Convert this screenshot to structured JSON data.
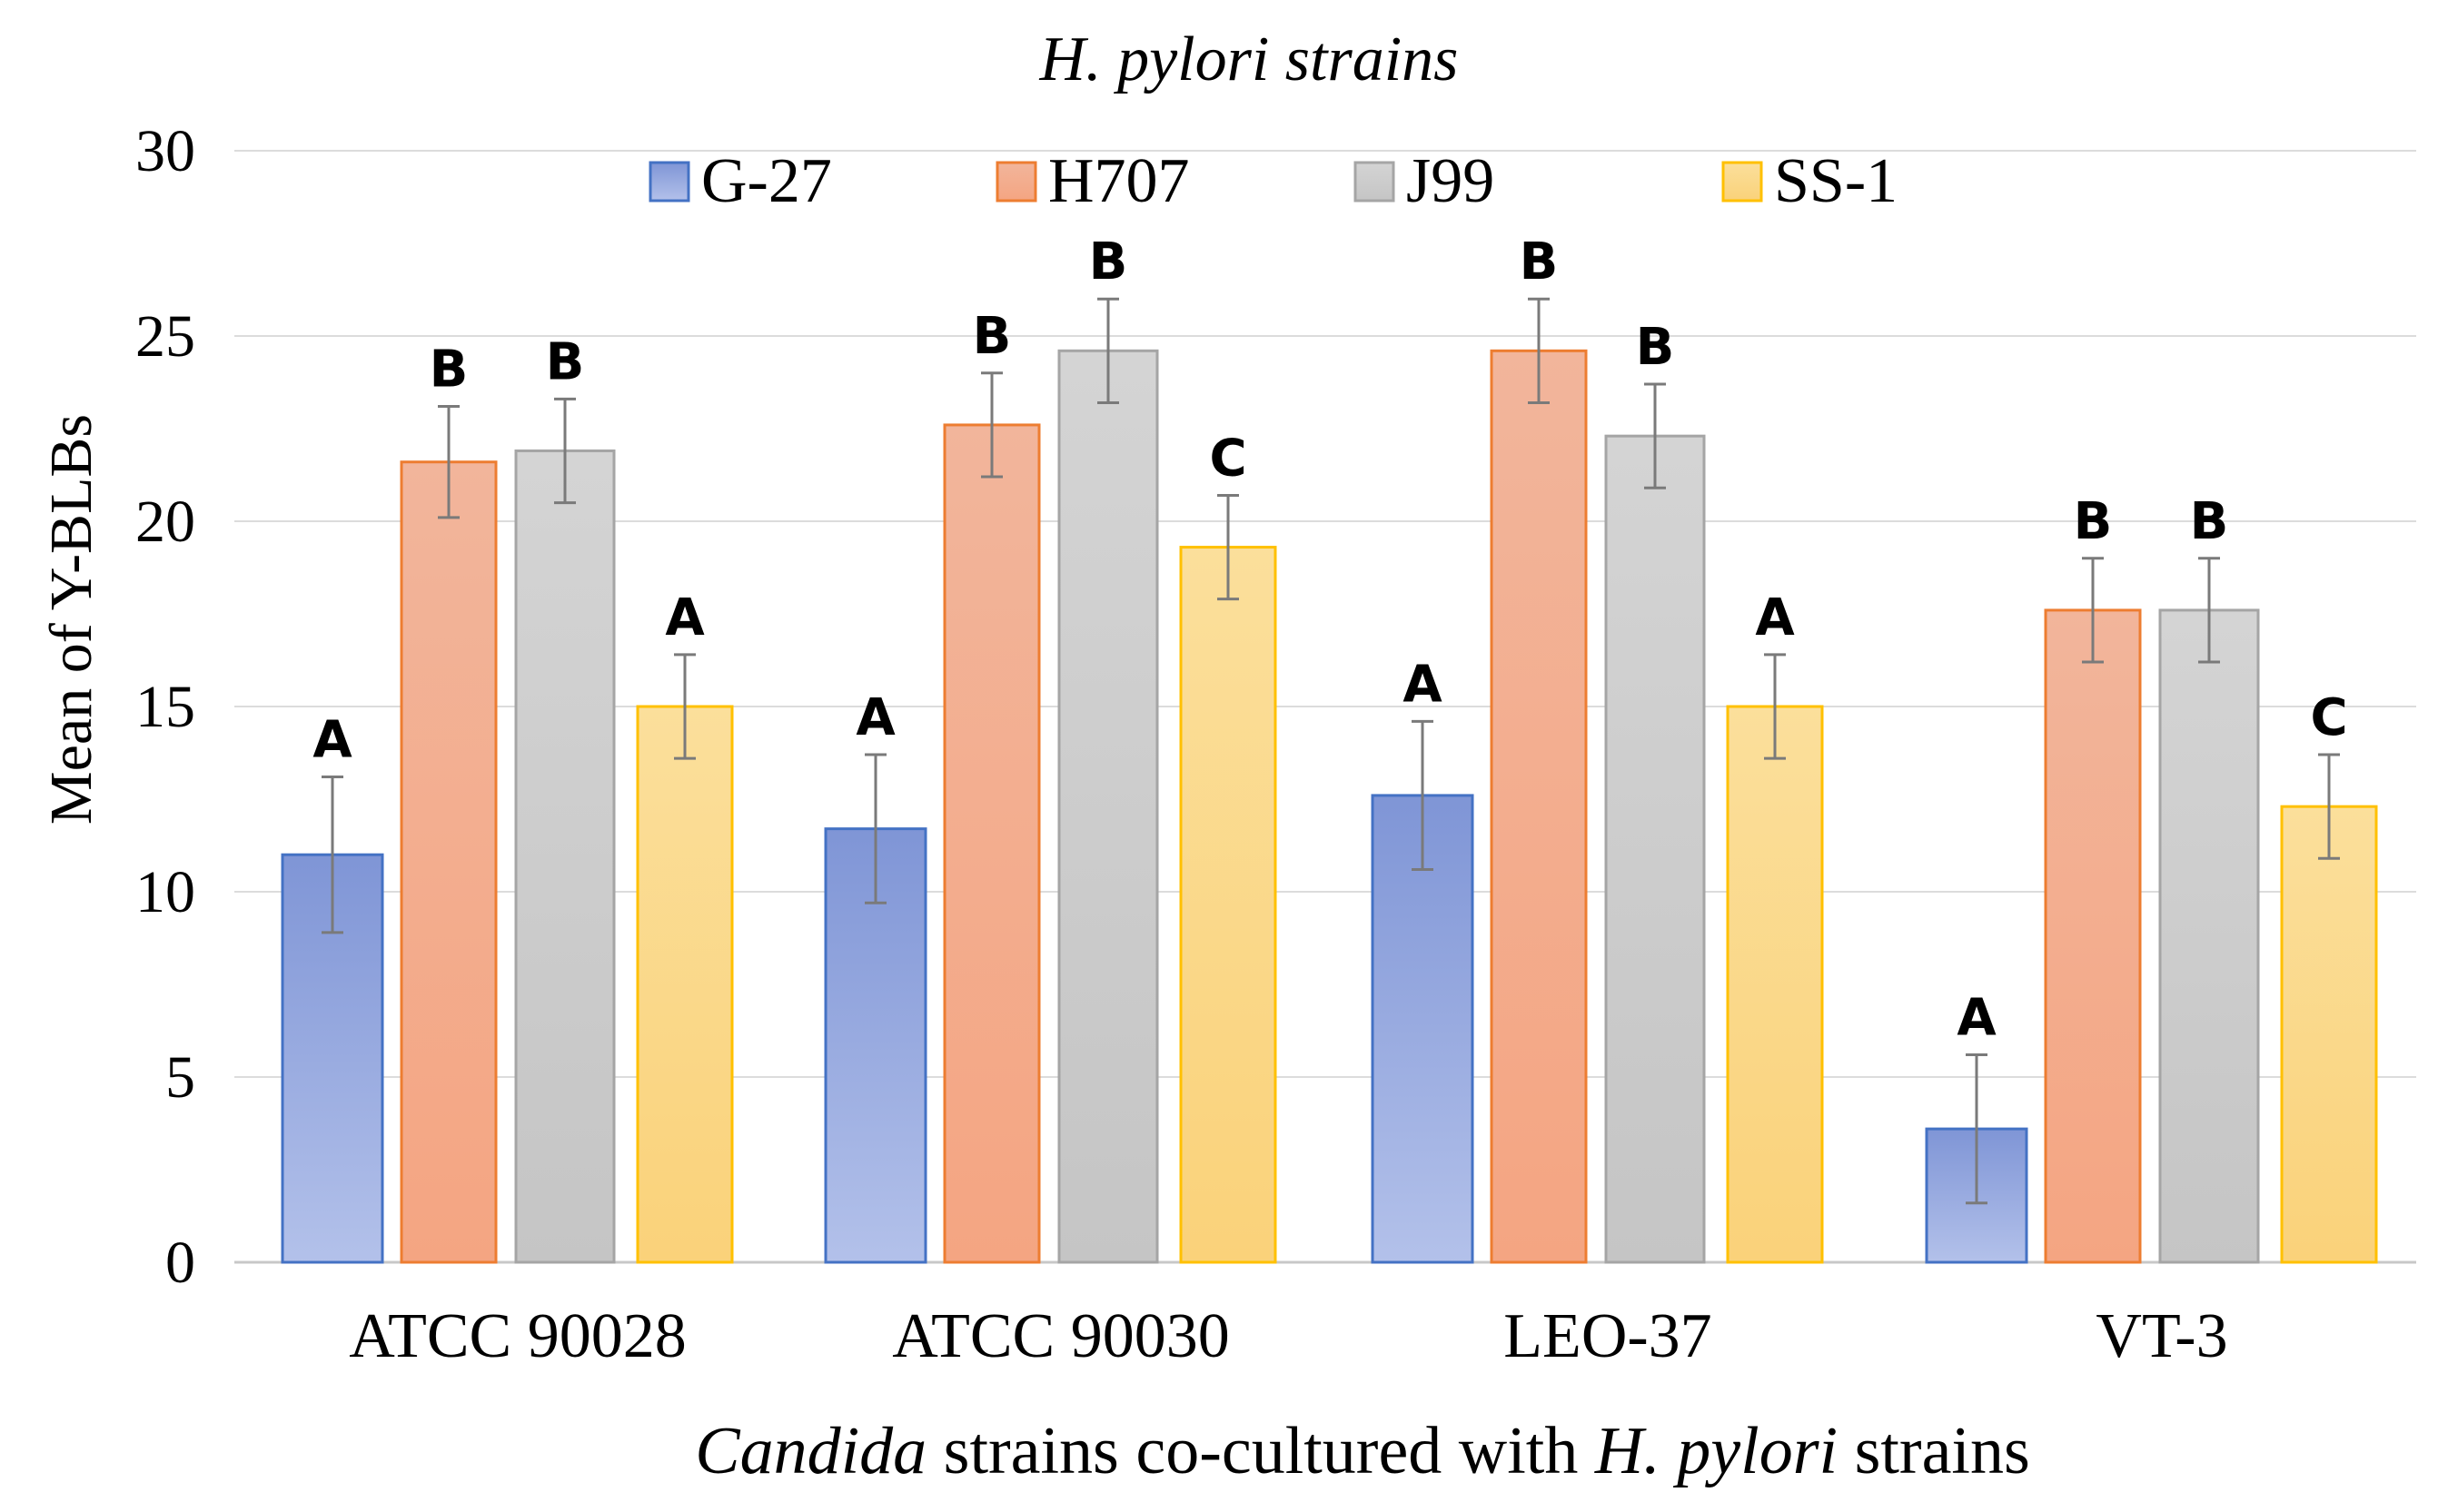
{
  "chart_data": {
    "type": "bar",
    "title": "H. pylori strains",
    "xlabel": {
      "parts": [
        {
          "text": "Candida",
          "italic": true
        },
        {
          "text": " strains co-cultured with ",
          "italic": false
        },
        {
          "text": "H. pylori",
          "italic": true
        },
        {
          "text": " strains",
          "italic": false
        }
      ]
    },
    "ylabel": "Mean of Y-BLBs",
    "ylim": [
      0,
      30
    ],
    "yticks": [
      0,
      5,
      10,
      15,
      20,
      25,
      30
    ],
    "grid": true,
    "legend_position": "top",
    "categories": [
      "ATCC 90028",
      "ATCC 90030",
      "LEO-37",
      "VT-3"
    ],
    "series": [
      {
        "name": "G-27",
        "color_top": "#7F95D6",
        "color_bottom": "#B3C1EA",
        "edge": "#4472C4",
        "values": [
          11.0,
          11.7,
          12.6,
          3.6
        ],
        "errors": [
          2.1,
          2.0,
          2.0,
          2.0
        ],
        "letters": [
          "A",
          "A",
          "A",
          "A"
        ]
      },
      {
        "name": "H707",
        "color_top": "#F2B59B",
        "color_bottom": "#F4A582",
        "edge": "#ED7D31",
        "values": [
          21.6,
          22.6,
          24.6,
          17.6
        ],
        "errors": [
          1.5,
          1.4,
          1.4,
          1.4
        ],
        "letters": [
          "B",
          "B",
          "B",
          "B"
        ]
      },
      {
        "name": "J99",
        "color_top": "#D4D4D4",
        "color_bottom": "#C5C5C5",
        "edge": "#A5A5A5",
        "values": [
          21.9,
          24.6,
          22.3,
          17.6
        ],
        "errors": [
          1.4,
          1.4,
          1.4,
          1.4
        ],
        "letters": [
          "B",
          "B",
          "B",
          "B"
        ]
      },
      {
        "name": "SS-1",
        "color_top": "#FBDF9B",
        "color_bottom": "#FAD27A",
        "edge": "#FFC000",
        "values": [
          15.0,
          19.3,
          15.0,
          12.3
        ],
        "errors": [
          1.4,
          1.4,
          1.4,
          1.4
        ],
        "letters": [
          "A",
          "C",
          "A",
          "C"
        ]
      }
    ]
  }
}
